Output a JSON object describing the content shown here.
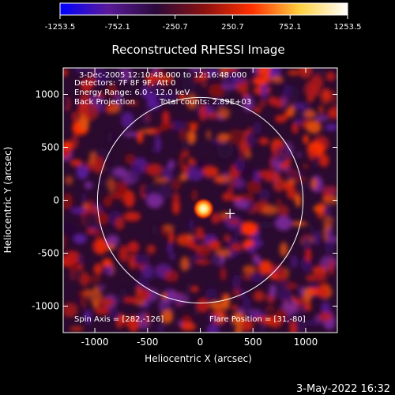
{
  "chart_data": {
    "type": "heatmap",
    "title": "Reconstructed RHESSI Image",
    "xlabel": "Heliocentric X (arcsec)",
    "ylabel": "Heliocentric Y (arcsec)",
    "xlim": [
      -1300,
      1300
    ],
    "ylim": [
      -1250,
      1250
    ],
    "xticks": [
      -1000,
      -500,
      0,
      500,
      1000
    ],
    "xtick_labels": [
      "-1000",
      "-500",
      "0",
      "500",
      "1000"
    ],
    "yticks": [
      -1000,
      -500,
      0,
      500,
      1000
    ],
    "ytick_labels": [
      "-1000",
      "-500",
      "0",
      "500",
      "1000"
    ],
    "colorbar": {
      "range": [
        -1253.5,
        1253.5
      ],
      "ticks": [
        -1253.5,
        -752.1,
        -250.7,
        250.7,
        752.1,
        1253.5
      ],
      "tick_labels": [
        "-1253.5",
        "-752.1",
        "-250.7",
        "250.7",
        "752.1",
        "1253.5"
      ],
      "colormap": [
        "#0000ff",
        "#5a1a9a",
        "#2a0a3a",
        "#8a1010",
        "#ff3000",
        "#ffd040",
        "#ffffff"
      ]
    },
    "annotations": {
      "time_range": "3-Dec-2005 12:10:48.000 to 12:16:48.000",
      "detectors": "Detectors: 7F 8F 9F, Att 0",
      "energy": "Energy Range: 6.0 - 12.0 keV",
      "method": "Back Projection",
      "counts": "Total counts: 2.89E+03",
      "spin_axis": "Spin Axis = [282,-126]",
      "flare_position": "Flare Position = [31,-80]"
    },
    "solar_limb": {
      "center": [
        0,
        0
      ],
      "radius": 975
    },
    "spin_axis_marker": {
      "x": 282,
      "y": -126
    },
    "bright_source": {
      "x": 31,
      "y": -80
    }
  },
  "footer": {
    "timestamp": "3-May-2022 16:32"
  }
}
